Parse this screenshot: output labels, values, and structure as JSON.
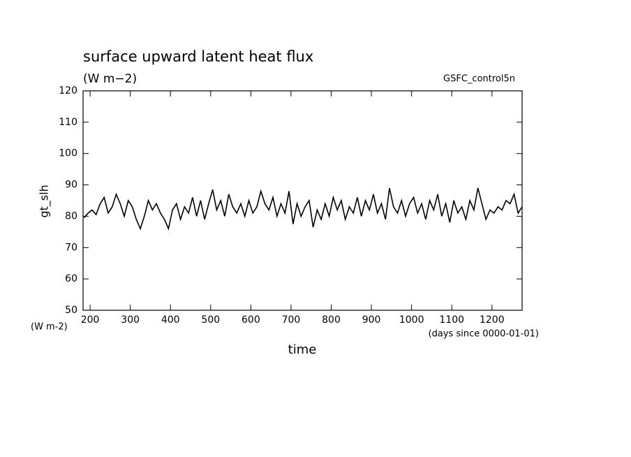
{
  "chart_data": {
    "type": "line",
    "title": "surface upward latent heat flux",
    "subtitle": "(W m−2)",
    "annotation": "GSFC_control5n",
    "y_label": "gt_slh",
    "y_unit_label": "(W m-2)",
    "x_label": "time",
    "x_unit_label": "(days since 0000-01-01)",
    "xlim": [
      182.5,
      1275
    ],
    "ylim": [
      50,
      120
    ],
    "xticks": [
      200,
      300,
      400,
      500,
      600,
      700,
      800,
      900,
      1000,
      1100,
      1200
    ],
    "yticks": [
      50,
      60,
      70,
      80,
      90,
      100,
      110,
      120
    ],
    "x": [
      185,
      195,
      205,
      215,
      225,
      235,
      245,
      255,
      265,
      275,
      285,
      295,
      305,
      315,
      325,
      335,
      345,
      355,
      365,
      375,
      385,
      395,
      405,
      415,
      425,
      435,
      445,
      455,
      465,
      475,
      485,
      495,
      505,
      515,
      525,
      535,
      545,
      555,
      565,
      575,
      585,
      595,
      605,
      615,
      625,
      635,
      645,
      655,
      665,
      675,
      685,
      695,
      705,
      715,
      725,
      735,
      745,
      755,
      765,
      775,
      785,
      795,
      805,
      815,
      825,
      835,
      845,
      855,
      865,
      875,
      885,
      895,
      905,
      915,
      925,
      935,
      945,
      955,
      965,
      975,
      985,
      995,
      1005,
      1015,
      1025,
      1035,
      1045,
      1055,
      1065,
      1075,
      1085,
      1095,
      1105,
      1115,
      1125,
      1135,
      1145,
      1155,
      1165,
      1175,
      1185,
      1195,
      1205,
      1215,
      1225,
      1235,
      1245,
      1255,
      1265,
      1275
    ],
    "series": [
      {
        "color": "#000000",
        "values": [
          79.5,
          81,
          82,
          80.5,
          84,
          86,
          81,
          83,
          87,
          84,
          80,
          85,
          83,
          79,
          76,
          80,
          85,
          82,
          84,
          81,
          79,
          76,
          82,
          84,
          79,
          83,
          81,
          86,
          80,
          85,
          79,
          84,
          88.5,
          82,
          85,
          80,
          87,
          83,
          81,
          84,
          80,
          85,
          81,
          83,
          88,
          84,
          82,
          86,
          80,
          84,
          81,
          88,
          77.5,
          84,
          80,
          83,
          85,
          76.5,
          82,
          79,
          84,
          80,
          86,
          82,
          85,
          79,
          83,
          81,
          86,
          80,
          85,
          82,
          87,
          81,
          84,
          79,
          89,
          83,
          81,
          85,
          80,
          84,
          86,
          81,
          84,
          79,
          85,
          82,
          87,
          80,
          84,
          78,
          85,
          81,
          83,
          79,
          85,
          82,
          89,
          84,
          79,
          82,
          81,
          83,
          82,
          85,
          84,
          87,
          81,
          83
        ]
      }
    ]
  }
}
